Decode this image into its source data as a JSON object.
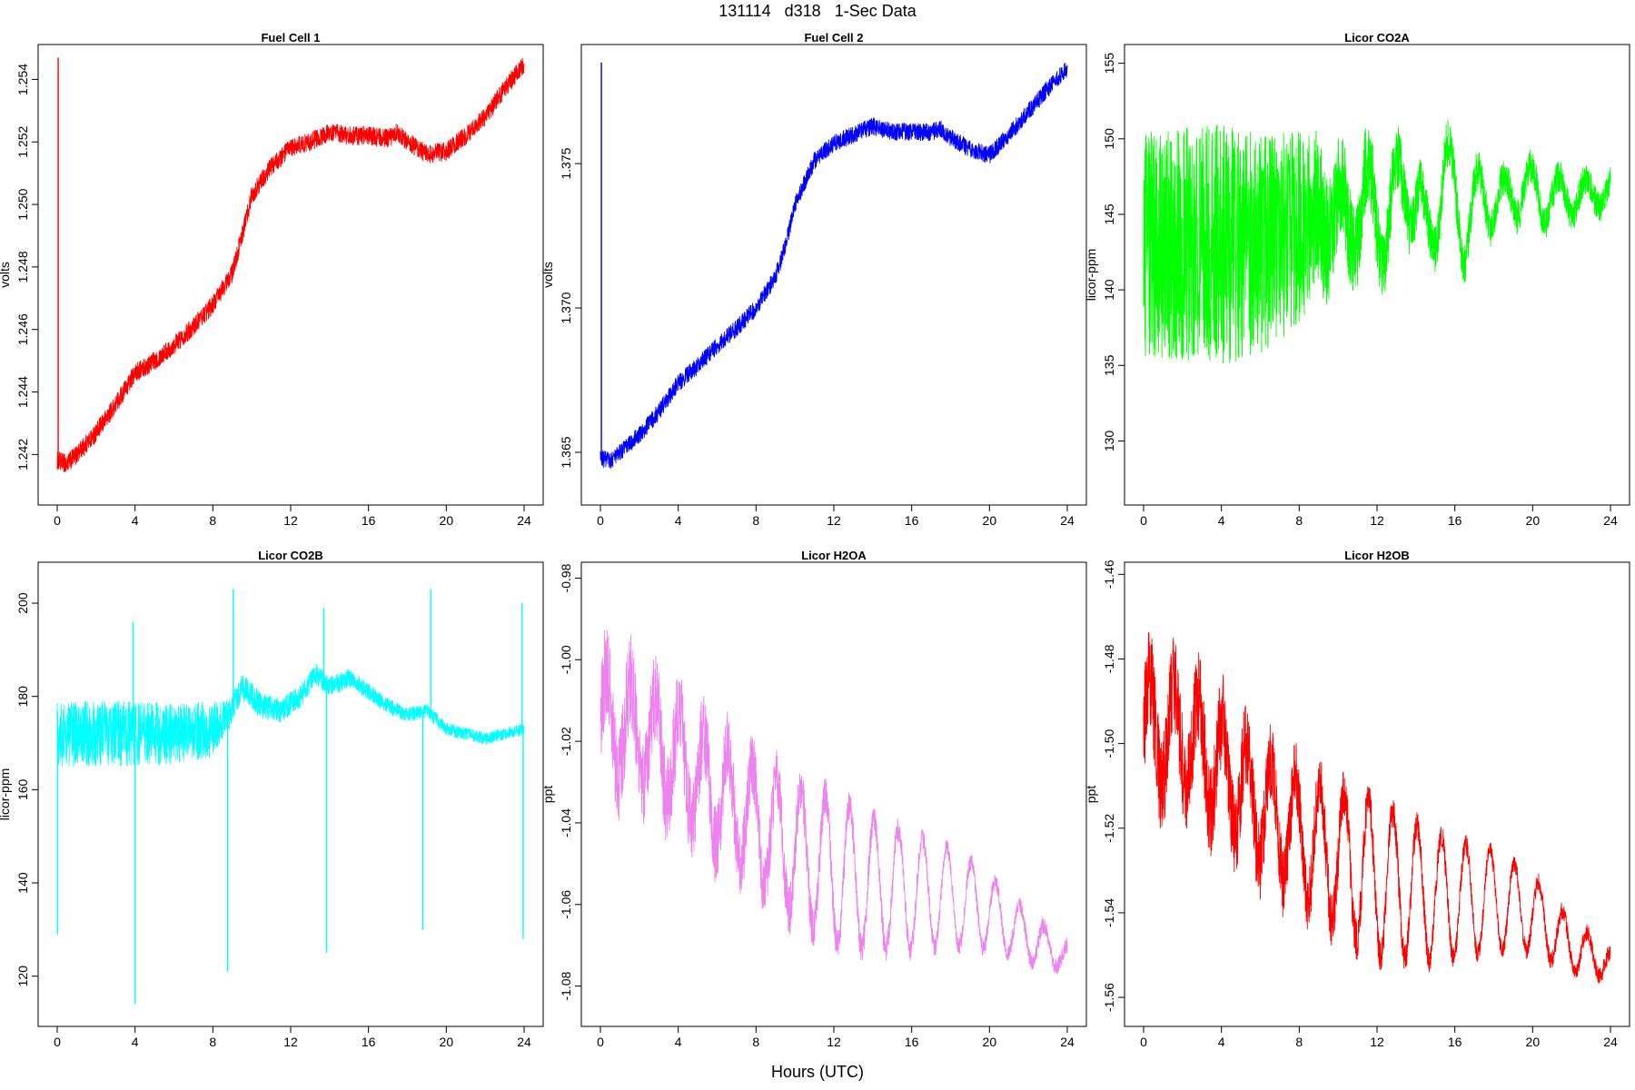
{
  "figure": {
    "title": "131114   d318   1-Sec Data",
    "xlabel": "Hours (UTC)"
  },
  "chart_data": [
    {
      "type": "line",
      "title": "Fuel Cell 1",
      "xlabel": "",
      "ylabel": "volts",
      "color": "#ff0000",
      "xlim": [
        0,
        24
      ],
      "ylim": [
        1.2405,
        1.255
      ],
      "xticks": [
        0,
        4,
        8,
        12,
        16,
        20,
        24
      ],
      "yticks": [
        1.242,
        1.244,
        1.246,
        1.248,
        1.25,
        1.252,
        1.254
      ],
      "ytick_labels": [
        "1.242",
        "1.244",
        "1.246",
        "1.248",
        "1.250",
        "1.252",
        "1.254"
      ],
      "noise": 0.0003,
      "spikes": [
        {
          "x": 0.05,
          "y": 1.2547
        }
      ],
      "x": [
        0,
        0.5,
        1,
        2,
        3,
        4,
        5,
        6,
        7,
        8,
        9,
        9.5,
        10,
        11,
        12,
        13,
        14,
        15,
        16,
        17,
        17.5,
        18,
        19,
        20,
        21,
        22,
        23,
        24
      ],
      "y": [
        1.2418,
        1.2417,
        1.242,
        1.2427,
        1.2436,
        1.2446,
        1.245,
        1.2455,
        1.2461,
        1.2468,
        1.2478,
        1.249,
        1.2503,
        1.2512,
        1.2518,
        1.252,
        1.2523,
        1.2522,
        1.2522,
        1.2521,
        1.2523,
        1.252,
        1.2516,
        1.2517,
        1.2522,
        1.2528,
        1.2537,
        1.2545
      ]
    },
    {
      "type": "line",
      "title": "Fuel Cell 2",
      "xlabel": "",
      "ylabel": "volts",
      "color": "#0000ff",
      "xlim": [
        0,
        24
      ],
      "ylim": [
        1.3633,
        1.379
      ],
      "xticks": [
        0,
        4,
        8,
        12,
        16,
        20,
        24
      ],
      "yticks": [
        1.365,
        1.37,
        1.375
      ],
      "ytick_labels": [
        "1.365",
        "1.370",
        "1.375"
      ],
      "noise": 0.0003,
      "spikes": [
        {
          "x": 0.05,
          "y": 1.3785
        }
      ],
      "x": [
        0,
        0.5,
        1,
        2,
        3,
        4,
        5,
        6,
        7,
        8,
        9,
        9.5,
        10,
        11,
        12,
        13,
        14,
        15,
        16,
        17,
        17.5,
        18,
        19,
        20,
        21,
        22,
        23,
        24
      ],
      "y": [
        1.3648,
        1.3647,
        1.365,
        1.3656,
        1.3664,
        1.3674,
        1.368,
        1.3687,
        1.3693,
        1.37,
        1.3711,
        1.3721,
        1.3736,
        1.3751,
        1.3757,
        1.376,
        1.3763,
        1.3761,
        1.3761,
        1.3761,
        1.3762,
        1.3759,
        1.3755,
        1.3753,
        1.376,
        1.3768,
        1.3776,
        1.3783
      ]
    },
    {
      "type": "line",
      "title": "Licor CO2A",
      "xlabel": "",
      "ylabel": "licor-ppm",
      "color": "#00ff00",
      "xlim": [
        0,
        24
      ],
      "ylim": [
        126,
        156
      ],
      "xticks": [
        0,
        4,
        8,
        12,
        16,
        20,
        24
      ],
      "yticks": [
        130,
        135,
        140,
        145,
        150,
        155
      ],
      "ytick_labels": [
        "130",
        "135",
        "140",
        "145",
        "150",
        "155"
      ],
      "x": [
        0,
        2,
        4,
        6,
        8,
        9.5,
        10.5,
        11.5,
        12.5,
        13.5,
        14.5,
        15.5,
        16.5,
        17.5,
        18.5,
        19.5,
        20.5,
        24
      ],
      "y": [
        143,
        143,
        143,
        143,
        144,
        145,
        144.5,
        146,
        144,
        148,
        143,
        148,
        144,
        146.5,
        145.5,
        147,
        146,
        146.5
      ],
      "amp_x": [
        0,
        4,
        8,
        10,
        14,
        18,
        24
      ],
      "amp_y": [
        7.5,
        8,
        6.5,
        3.5,
        1.8,
        1.2,
        1.0
      ],
      "osc_amp": [
        0,
        0,
        0,
        2.5,
        3,
        2,
        0.8
      ],
      "osc_period": 1.4
    },
    {
      "type": "line",
      "title": "Licor CO2B",
      "xlabel": "",
      "ylabel": "licor-ppm",
      "color": "#00ffff",
      "xlim": [
        0,
        24
      ],
      "ylim": [
        110,
        208
      ],
      "xticks": [
        0,
        4,
        8,
        12,
        16,
        20,
        24
      ],
      "yticks": [
        120,
        140,
        160,
        180,
        200
      ],
      "ytick_labels": [
        "120",
        "140",
        "160",
        "180",
        "200"
      ],
      "x": [
        0,
        2,
        4,
        6,
        8,
        8.8,
        9.5,
        10.5,
        11.5,
        12.5,
        13.3,
        14,
        15,
        16,
        17,
        18,
        19,
        20,
        21,
        22,
        23,
        24
      ],
      "y": [
        172,
        172,
        172,
        172,
        173,
        176,
        182,
        178,
        177,
        180,
        185,
        182,
        184,
        181,
        178,
        176,
        177,
        173,
        172,
        171,
        172,
        173
      ],
      "amp_x": [
        0,
        4,
        8,
        9,
        12,
        18,
        24
      ],
      "amp_y": [
        7,
        7,
        6,
        3,
        2.5,
        1.5,
        1.2
      ],
      "dips": [
        {
          "x": 0.02,
          "y": 129
        },
        {
          "x": 3.9,
          "y": 196
        },
        {
          "x": 4.0,
          "y": 114
        },
        {
          "x": 8.75,
          "y": 121
        },
        {
          "x": 9.05,
          "y": 203
        },
        {
          "x": 13.7,
          "y": 199
        },
        {
          "x": 13.85,
          "y": 125
        },
        {
          "x": 18.8,
          "y": 130
        },
        {
          "x": 19.2,
          "y": 203
        },
        {
          "x": 23.9,
          "y": 200
        },
        {
          "x": 23.95,
          "y": 128
        }
      ]
    },
    {
      "type": "line",
      "title": "Licor H2OA",
      "xlabel": "",
      "ylabel": "ppt",
      "color": "#ee82ee",
      "xlim": [
        0,
        24
      ],
      "ylim": [
        -1.089,
        -0.977
      ],
      "xticks": [
        0,
        4,
        8,
        12,
        16,
        20,
        24
      ],
      "yticks": [
        -1.08,
        -1.06,
        -1.04,
        -1.02,
        -1.0,
        -0.98
      ],
      "ytick_labels": [
        "-1.08",
        "-1.06",
        "-1.04",
        "-1.02",
        "-1.00",
        "-0.98"
      ],
      "x": [
        0,
        2,
        4,
        6,
        8,
        10,
        12,
        14,
        16,
        18,
        20,
        22,
        24
      ],
      "y": [
        -1.015,
        -1.018,
        -1.025,
        -1.033,
        -1.04,
        -1.047,
        -1.052,
        -1.055,
        -1.057,
        -1.058,
        -1.062,
        -1.068,
        -1.073
      ],
      "amp_x": [
        0,
        4,
        8,
        12,
        18,
        24
      ],
      "amp_y": [
        0.012,
        0.011,
        0.008,
        0.004,
        0.002,
        0.002
      ],
      "osc_amp": [
        0.012,
        0.012,
        0.014,
        0.018,
        0.012,
        0.003
      ],
      "osc_period": 1.25
    },
    {
      "type": "line",
      "title": "Licor H2OB",
      "xlabel": "",
      "ylabel": "ppt",
      "color": "#ff0000",
      "xlim": [
        0,
        24
      ],
      "ylim": [
        -1.566,
        -1.458
      ],
      "xticks": [
        0,
        4,
        8,
        12,
        16,
        20,
        24
      ],
      "yticks": [
        -1.56,
        -1.54,
        -1.52,
        -1.5,
        -1.48,
        -1.46
      ],
      "ytick_labels": [
        "-1.56",
        "-1.54",
        "-1.52",
        "-1.50",
        "-1.48",
        "-1.46"
      ],
      "x": [
        0,
        2,
        4,
        6,
        8,
        10,
        12,
        14,
        16,
        18,
        20,
        22,
        24
      ],
      "y": [
        -1.497,
        -1.498,
        -1.506,
        -1.515,
        -1.522,
        -1.527,
        -1.532,
        -1.535,
        -1.537,
        -1.537,
        -1.54,
        -1.548,
        -1.552
      ],
      "amp_x": [
        0,
        4,
        8,
        12,
        18,
        24
      ],
      "amp_y": [
        0.012,
        0.011,
        0.008,
        0.004,
        0.002,
        0.002
      ],
      "osc_amp": [
        0.012,
        0.012,
        0.014,
        0.018,
        0.012,
        0.003
      ],
      "osc_period": 1.25
    }
  ]
}
